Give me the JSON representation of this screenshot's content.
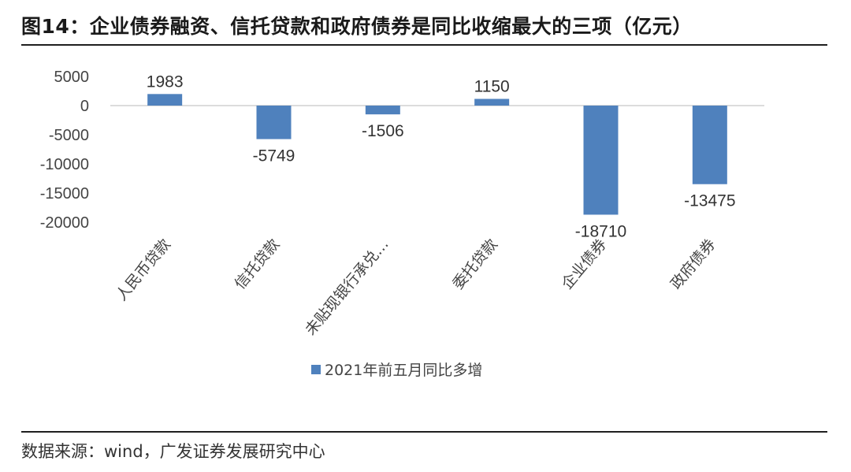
{
  "figure": {
    "title": "图14：企业债券融资、信托贷款和政府债券是同比收缩最大的三项（亿元）",
    "source": "数据来源：wind，广发证券发展研究中心"
  },
  "chart_data": {
    "type": "bar",
    "categories": [
      "人民币贷款",
      "信托贷款",
      "未贴现银行承兑…",
      "委托贷款",
      "企业债券",
      "政府债券"
    ],
    "series": [
      {
        "name": "2021年前五月同比多增",
        "values": [
          1983,
          -5749,
          -1506,
          1150,
          -18710,
          -13475
        ],
        "color": "#4f81bd"
      }
    ],
    "data_labels": [
      "1983",
      "-5749",
      "-1506",
      "1150",
      "-18710",
      "-13475"
    ],
    "yticks": [
      5000,
      0,
      -5000,
      -10000,
      -15000,
      -20000
    ],
    "ylim": [
      -20000,
      5000
    ],
    "grid": false,
    "legend_position": "bottom"
  }
}
